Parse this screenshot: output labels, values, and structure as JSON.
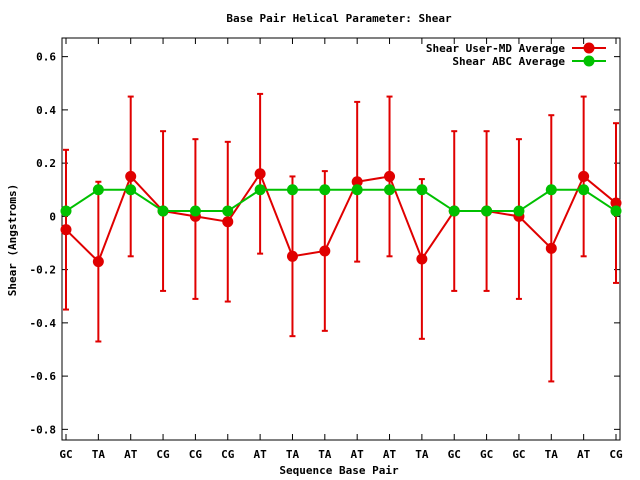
{
  "chart_data": {
    "type": "line",
    "title": "Base Pair Helical Parameter: Shear",
    "xlabel": "Sequence Base Pair",
    "ylabel": "Shear (Angstroms)",
    "categories": [
      "GC",
      "TA",
      "AT",
      "CG",
      "CG",
      "CG",
      "AT",
      "TA",
      "TA",
      "AT",
      "AT",
      "TA",
      "GC",
      "GC",
      "GC",
      "TA",
      "AT",
      "CG"
    ],
    "ylim": [
      -0.84,
      0.67
    ],
    "yticks": [
      -0.8,
      -0.6,
      -0.4,
      -0.2,
      0,
      0.2,
      0.4,
      0.6
    ],
    "ytick_labels": [
      "-0.8",
      "-0.6",
      "-0.4",
      "-0.2",
      "0",
      "0.2",
      "0.4",
      "0.6"
    ],
    "grid": false,
    "legend_position": "top-right",
    "series": [
      {
        "name": "Shear User-MD Average",
        "color": "#e00000",
        "values": [
          -0.05,
          -0.17,
          0.15,
          0.02,
          0.0,
          -0.02,
          0.16,
          -0.15,
          -0.13,
          0.13,
          0.15,
          -0.16,
          0.02,
          0.02,
          0.0,
          -0.12,
          0.15,
          0.05
        ],
        "error_low": [
          -0.35,
          -0.47,
          -0.15,
          -0.28,
          -0.31,
          -0.32,
          -0.14,
          -0.45,
          -0.43,
          -0.17,
          -0.15,
          -0.46,
          -0.28,
          -0.28,
          -0.31,
          -0.62,
          -0.15,
          -0.25
        ],
        "error_high": [
          0.25,
          0.13,
          0.45,
          0.32,
          0.29,
          0.28,
          0.46,
          0.15,
          0.17,
          0.43,
          0.45,
          0.14,
          0.32,
          0.32,
          0.29,
          0.38,
          0.45,
          0.35
        ]
      },
      {
        "name": "Shear ABC Average",
        "color": "#00c000",
        "values": [
          0.02,
          0.1,
          0.1,
          0.02,
          0.02,
          0.02,
          0.1,
          0.1,
          0.1,
          0.1,
          0.1,
          0.1,
          0.02,
          0.02,
          0.02,
          0.1,
          0.1,
          0.02
        ]
      }
    ]
  }
}
